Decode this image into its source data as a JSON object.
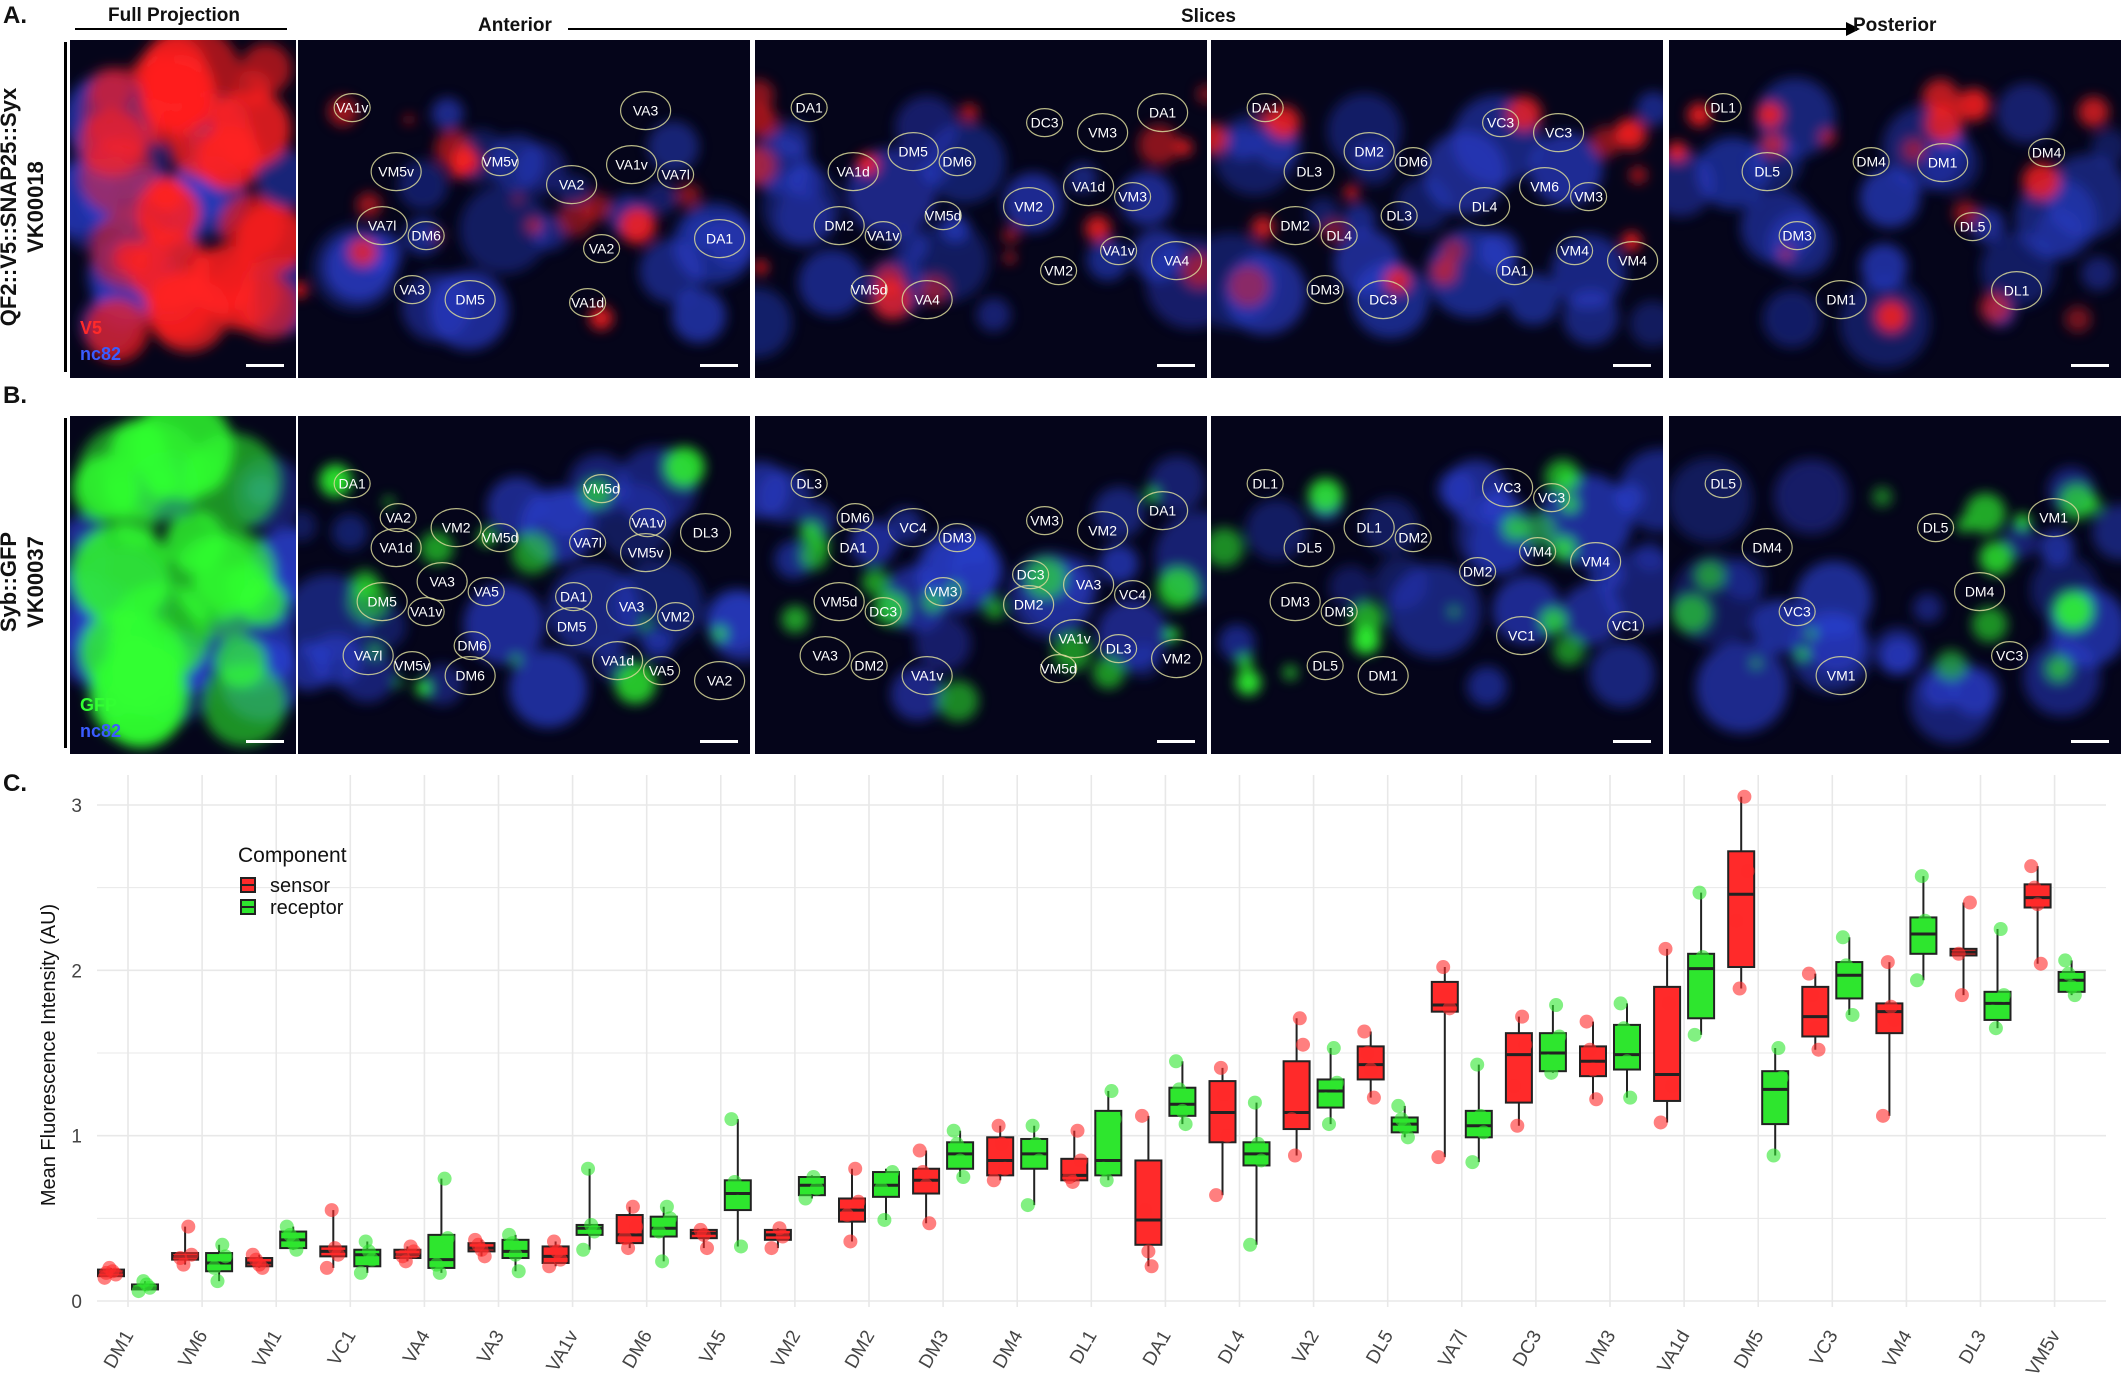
{
  "figure": {
    "panel_a_letter": "A.",
    "panel_b_letter": "B.",
    "panel_c_letter": "C.",
    "header_full_projection": "Full Projection",
    "header_anterior": "Anterior",
    "header_slices": "Slices",
    "header_posterior": "Posterior",
    "row_a_label_line1": "QF2::V5::SNAP25::Syx",
    "row_a_label_line2": "VK00018",
    "row_b_label_line1": "Syb::GFP",
    "row_b_label_line2": "VK00037",
    "row_a_channel1": "V5",
    "row_a_channel2": "nc82",
    "row_b_channel1": "GFP",
    "row_b_channel2": "nc82",
    "colors": {
      "red": "#ff2020",
      "green": "#30ff30",
      "blue": "#2a3fd0"
    },
    "row_a_slices": [
      [
        "VA1v",
        "VM5v",
        "DM6",
        "DM5",
        "VM5v",
        "VA7l",
        "VA3",
        "VA2",
        "VA2",
        "VA3",
        "VA7l",
        "DA1",
        "VA1d",
        "VA1v"
      ],
      [
        "DA1",
        "VA1d",
        "VA1v",
        "VA4",
        "DM6",
        "DM2",
        "VM5d",
        "DM5",
        "VM5d",
        "VM2",
        "VM2",
        "VM3",
        "VM3",
        "VA4",
        "DC3",
        "VA1d",
        "VA1v",
        "DA1"
      ],
      [
        "DA1",
        "DL3",
        "DL4",
        "DC3",
        "DM6",
        "DM2",
        "DM3",
        "DM2",
        "DL3",
        "DL4",
        "DA1",
        "VC3",
        "VM3",
        "VM4",
        "VC3",
        "VM6",
        "VM4"
      ],
      [
        "DL1",
        "DL5",
        "DM3",
        "DM1",
        "DM4",
        "DM1",
        "DL5",
        "DL1",
        "DM4"
      ]
    ],
    "row_b_slices": [
      [
        "DA1",
        "VA1d",
        "VA1v",
        "DM6",
        "VM5d",
        "DM5",
        "VM5v",
        "VM2",
        "VA5",
        "VA7l",
        "VA2",
        "VA3",
        "DM6",
        "DM5",
        "VM5d",
        "VM5v",
        "VM2",
        "VA2",
        "VA7l",
        "VA3",
        "VA5",
        "DL3",
        "DA1",
        "VA1d",
        "VA1v"
      ],
      [
        "DL3",
        "DA1",
        "DC3",
        "VA1v",
        "DM3",
        "VM5d",
        "DM2",
        "VC4",
        "VM3",
        "VA3",
        "DM6",
        "DM2",
        "VM5d",
        "VM2",
        "VC4",
        "VM2",
        "VM3",
        "VA3",
        "DL3",
        "DA1",
        "DC3",
        "VA1v"
      ],
      [
        "DL1",
        "DL5",
        "DM3",
        "DM1",
        "DM2",
        "DM3",
        "DL5",
        "DL1",
        "DM2",
        "VC1",
        "VC3",
        "VM4",
        "VC1",
        "VC3",
        "VM4"
      ],
      [
        "DL5",
        "DM4",
        "VC3",
        "VM1",
        "DL5",
        "DM4",
        "VC3",
        "VM1"
      ]
    ]
  },
  "chart_data": {
    "type": "box",
    "title": "",
    "xlabel": "",
    "ylabel": "Mean Fluorescence Intensity (AU)",
    "ylim": [
      0,
      3.2
    ],
    "yticks": [
      "0",
      "1",
      "2",
      "3"
    ],
    "grid": true,
    "legend": {
      "title": "Component",
      "position": "top-left",
      "entries": [
        "sensor",
        "receptor"
      ]
    },
    "series_colors": {
      "sensor": "#ff2a2a",
      "receptor": "#2ee62e"
    },
    "categories": [
      "DM1",
      "VM6",
      "VM1",
      "VC1",
      "VA4",
      "VA3",
      "VA1v",
      "DM6",
      "VA5",
      "VM2",
      "DM2",
      "DM3",
      "DM4",
      "DL1",
      "DA1",
      "DL4",
      "VA2",
      "DL5",
      "VA7l",
      "DC3",
      "VM3",
      "VA1d",
      "DM5",
      "VC3",
      "VM4",
      "DL3",
      "VM5v"
    ],
    "series": [
      {
        "name": "sensor",
        "boxes": [
          {
            "min": 0.14,
            "q1": 0.15,
            "median": 0.17,
            "q3": 0.19,
            "max": 0.2,
            "points": [
              0.14,
              0.16,
              0.18,
              0.2,
              0.17
            ]
          },
          {
            "min": 0.22,
            "q1": 0.25,
            "median": 0.27,
            "q3": 0.29,
            "max": 0.45,
            "points": [
              0.22,
              0.26,
              0.28,
              0.45
            ]
          },
          {
            "min": 0.2,
            "q1": 0.21,
            "median": 0.23,
            "q3": 0.26,
            "max": 0.28,
            "points": [
              0.2,
              0.22,
              0.25,
              0.28
            ]
          },
          {
            "min": 0.2,
            "q1": 0.27,
            "median": 0.3,
            "q3": 0.33,
            "max": 0.55,
            "points": [
              0.2,
              0.28,
              0.32,
              0.55
            ]
          },
          {
            "min": 0.24,
            "q1": 0.26,
            "median": 0.28,
            "q3": 0.31,
            "max": 0.33,
            "points": [
              0.24,
              0.27,
              0.3,
              0.33
            ]
          },
          {
            "min": 0.27,
            "q1": 0.3,
            "median": 0.32,
            "q3": 0.35,
            "max": 0.37,
            "points": [
              0.27,
              0.31,
              0.34,
              0.37
            ]
          },
          {
            "min": 0.21,
            "q1": 0.23,
            "median": 0.27,
            "q3": 0.33,
            "max": 0.36,
            "points": [
              0.21,
              0.25,
              0.3,
              0.36
            ]
          },
          {
            "min": 0.32,
            "q1": 0.35,
            "median": 0.4,
            "q3": 0.52,
            "max": 0.57,
            "points": [
              0.32,
              0.38,
              0.45,
              0.57
            ]
          },
          {
            "min": 0.32,
            "q1": 0.38,
            "median": 0.41,
            "q3": 0.43,
            "max": 0.44,
            "points": [
              0.32,
              0.4,
              0.43
            ]
          },
          {
            "min": 0.32,
            "q1": 0.37,
            "median": 0.4,
            "q3": 0.43,
            "max": 0.44,
            "points": [
              0.32,
              0.39,
              0.44
            ]
          },
          {
            "min": 0.36,
            "q1": 0.48,
            "median": 0.55,
            "q3": 0.62,
            "max": 0.8,
            "points": [
              0.36,
              0.52,
              0.6,
              0.8
            ]
          },
          {
            "min": 0.47,
            "q1": 0.65,
            "median": 0.73,
            "q3": 0.8,
            "max": 0.91,
            "points": [
              0.47,
              0.7,
              0.78,
              0.91
            ]
          },
          {
            "min": 0.73,
            "q1": 0.76,
            "median": 0.85,
            "q3": 0.99,
            "max": 1.06,
            "points": [
              0.73,
              0.8,
              0.95,
              1.06
            ]
          },
          {
            "min": 0.72,
            "q1": 0.73,
            "median": 0.76,
            "q3": 0.86,
            "max": 1.03,
            "points": [
              0.72,
              0.75,
              0.85,
              1.03
            ]
          },
          {
            "min": 0.21,
            "q1": 0.34,
            "median": 0.49,
            "q3": 0.85,
            "max": 1.12,
            "points": [
              0.21,
              0.3,
              0.55,
              1.12
            ]
          },
          {
            "min": 0.64,
            "q1": 0.96,
            "median": 1.14,
            "q3": 1.33,
            "max": 1.41,
            "points": [
              0.64,
              1.0,
              1.25,
              1.41
            ]
          },
          {
            "min": 0.88,
            "q1": 1.04,
            "median": 1.14,
            "q3": 1.45,
            "max": 1.71,
            "points": [
              0.88,
              1.1,
              1.55,
              1.71
            ]
          },
          {
            "min": 1.23,
            "q1": 1.34,
            "median": 1.43,
            "q3": 1.54,
            "max": 1.63,
            "points": [
              1.23,
              1.4,
              1.5,
              1.63
            ]
          },
          {
            "min": 0.87,
            "q1": 1.75,
            "median": 1.79,
            "q3": 1.93,
            "max": 2.02,
            "points": [
              0.87,
              1.77,
              1.85,
              2.02
            ]
          },
          {
            "min": 1.06,
            "q1": 1.2,
            "median": 1.49,
            "q3": 1.62,
            "max": 1.72,
            "points": [
              1.06,
              1.3,
              1.55,
              1.72
            ]
          },
          {
            "min": 1.22,
            "q1": 1.36,
            "median": 1.45,
            "q3": 1.54,
            "max": 1.69,
            "points": [
              1.22,
              1.4,
              1.52,
              1.69
            ]
          },
          {
            "min": 1.08,
            "q1": 1.21,
            "median": 1.37,
            "q3": 1.9,
            "max": 2.13,
            "points": [
              1.08,
              1.3,
              1.8,
              2.13
            ]
          },
          {
            "min": 1.89,
            "q1": 2.02,
            "median": 2.46,
            "q3": 2.72,
            "max": 3.05,
            "points": [
              1.89,
              2.3,
              2.6,
              3.05
            ]
          },
          {
            "min": 1.52,
            "q1": 1.6,
            "median": 1.72,
            "q3": 1.9,
            "max": 1.98,
            "points": [
              1.52,
              1.65,
              1.85,
              1.98
            ]
          },
          {
            "min": 1.12,
            "q1": 1.62,
            "median": 1.75,
            "q3": 1.8,
            "max": 2.05,
            "points": [
              1.12,
              1.7,
              1.78,
              2.05
            ]
          },
          {
            "min": 1.85,
            "q1": 2.09,
            "median": 2.11,
            "q3": 2.13,
            "max": 2.41,
            "points": [
              1.85,
              2.1,
              2.41
            ]
          },
          {
            "min": 2.04,
            "q1": 2.38,
            "median": 2.44,
            "q3": 2.52,
            "max": 2.63,
            "points": [
              2.04,
              2.4,
              2.5,
              2.63
            ]
          }
        ]
      },
      {
        "name": "receptor",
        "boxes": [
          {
            "min": 0.06,
            "q1": 0.07,
            "median": 0.08,
            "q3": 0.1,
            "max": 0.12,
            "points": [
              0.06,
              0.08,
              0.1,
              0.12
            ]
          },
          {
            "min": 0.12,
            "q1": 0.18,
            "median": 0.23,
            "q3": 0.29,
            "max": 0.34,
            "points": [
              0.12,
              0.2,
              0.27,
              0.34
            ]
          },
          {
            "min": 0.31,
            "q1": 0.32,
            "median": 0.37,
            "q3": 0.42,
            "max": 0.45,
            "points": [
              0.31,
              0.35,
              0.4,
              0.45
            ]
          },
          {
            "min": 0.17,
            "q1": 0.21,
            "median": 0.28,
            "q3": 0.31,
            "max": 0.36,
            "points": [
              0.17,
              0.25,
              0.3,
              0.36
            ]
          },
          {
            "min": 0.17,
            "q1": 0.2,
            "median": 0.25,
            "q3": 0.4,
            "max": 0.74,
            "points": [
              0.17,
              0.22,
              0.38,
              0.74
            ]
          },
          {
            "min": 0.18,
            "q1": 0.26,
            "median": 0.3,
            "q3": 0.37,
            "max": 0.4,
            "points": [
              0.18,
              0.28,
              0.35,
              0.4
            ]
          },
          {
            "min": 0.31,
            "q1": 0.4,
            "median": 0.44,
            "q3": 0.46,
            "max": 0.8,
            "points": [
              0.31,
              0.42,
              0.46,
              0.8
            ]
          },
          {
            "min": 0.24,
            "q1": 0.39,
            "median": 0.44,
            "q3": 0.51,
            "max": 0.57,
            "points": [
              0.24,
              0.42,
              0.5,
              0.57
            ]
          },
          {
            "min": 0.33,
            "q1": 0.55,
            "median": 0.65,
            "q3": 0.73,
            "max": 1.1,
            "points": [
              0.33,
              0.6,
              0.72,
              1.1
            ]
          },
          {
            "min": 0.62,
            "q1": 0.64,
            "median": 0.7,
            "q3": 0.75,
            "max": 0.76,
            "points": [
              0.62,
              0.68,
              0.75
            ]
          },
          {
            "min": 0.49,
            "q1": 0.63,
            "median": 0.7,
            "q3": 0.78,
            "max": 0.8,
            "points": [
              0.49,
              0.68,
              0.78
            ]
          },
          {
            "min": 0.75,
            "q1": 0.8,
            "median": 0.89,
            "q3": 0.96,
            "max": 1.03,
            "points": [
              0.75,
              0.85,
              0.95,
              1.03
            ]
          },
          {
            "min": 0.58,
            "q1": 0.8,
            "median": 0.89,
            "q3": 0.98,
            "max": 1.06,
            "points": [
              0.58,
              0.85,
              0.95,
              1.06
            ]
          },
          {
            "min": 0.73,
            "q1": 0.76,
            "median": 0.85,
            "q3": 1.15,
            "max": 1.27,
            "points": [
              0.73,
              0.8,
              1.1,
              1.27
            ]
          },
          {
            "min": 1.07,
            "q1": 1.12,
            "median": 1.19,
            "q3": 1.29,
            "max": 1.45,
            "points": [
              1.07,
              1.15,
              1.28,
              1.45
            ]
          },
          {
            "min": 0.34,
            "q1": 0.82,
            "median": 0.89,
            "q3": 0.96,
            "max": 1.2,
            "points": [
              0.34,
              0.85,
              0.95,
              1.2
            ]
          },
          {
            "min": 1.07,
            "q1": 1.17,
            "median": 1.27,
            "q3": 1.34,
            "max": 1.53,
            "points": [
              1.07,
              1.22,
              1.32,
              1.53
            ]
          },
          {
            "min": 0.99,
            "q1": 1.02,
            "median": 1.07,
            "q3": 1.11,
            "max": 1.18,
            "points": [
              0.99,
              1.05,
              1.1,
              1.18
            ]
          },
          {
            "min": 0.84,
            "q1": 0.99,
            "median": 1.06,
            "q3": 1.15,
            "max": 1.43,
            "points": [
              0.84,
              1.02,
              1.12,
              1.43
            ]
          },
          {
            "min": 1.38,
            "q1": 1.39,
            "median": 1.5,
            "q3": 1.62,
            "max": 1.79,
            "points": [
              1.38,
              1.45,
              1.6,
              1.79
            ]
          },
          {
            "min": 1.23,
            "q1": 1.4,
            "median": 1.49,
            "q3": 1.67,
            "max": 1.8,
            "points": [
              1.23,
              1.45,
              1.65,
              1.8
            ]
          },
          {
            "min": 1.61,
            "q1": 1.71,
            "median": 2.01,
            "q3": 2.1,
            "max": 2.47,
            "points": [
              1.61,
              1.9,
              2.08,
              2.47
            ]
          },
          {
            "min": 0.88,
            "q1": 1.07,
            "median": 1.28,
            "q3": 1.39,
            "max": 1.53,
            "points": [
              0.88,
              1.2,
              1.35,
              1.53
            ]
          },
          {
            "min": 1.73,
            "q1": 1.83,
            "median": 1.97,
            "q3": 2.05,
            "max": 2.2,
            "points": [
              1.73,
              1.9,
              2.03,
              2.2
            ]
          },
          {
            "min": 1.94,
            "q1": 2.1,
            "median": 2.22,
            "q3": 2.32,
            "max": 2.57,
            "points": [
              1.94,
              2.15,
              2.3,
              2.57
            ]
          },
          {
            "min": 1.65,
            "q1": 1.7,
            "median": 1.8,
            "q3": 1.87,
            "max": 2.25,
            "points": [
              1.65,
              1.75,
              1.85,
              2.25
            ]
          },
          {
            "min": 1.85,
            "q1": 1.87,
            "median": 1.94,
            "q3": 1.99,
            "max": 2.06,
            "points": [
              1.85,
              1.9,
              1.98,
              2.06
            ]
          }
        ]
      }
    ]
  }
}
